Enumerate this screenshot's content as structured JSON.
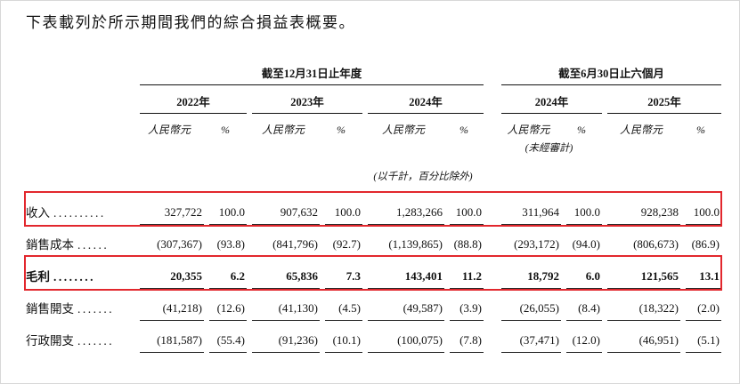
{
  "page": {
    "title": "下表載列於所示期間我們的綜合損益表概要。"
  },
  "table": {
    "groups": [
      {
        "label": "截至12月31日止年度"
      },
      {
        "label": "截至6月30日止六個月"
      }
    ],
    "years": [
      "2022年",
      "2023年",
      "2024年",
      "2024年",
      "2025年"
    ],
    "currency_header": "人民幣元",
    "percent_header": "%",
    "unaudited_note": "(未經審計)",
    "units_note": "(以千計，百分比除外)",
    "highlight_color": "#e2272d",
    "rows": [
      {
        "label": "收入",
        "dots": "..........",
        "highlighted": true,
        "bold": false,
        "values": [
          "327,722",
          "100.0",
          "907,632",
          "100.0",
          "1,283,266",
          "100.0",
          "311,964",
          "100.0",
          "928,238",
          "100.0"
        ]
      },
      {
        "label": "銷售成本",
        "dots": "......",
        "highlighted": false,
        "bold": false,
        "values": [
          "(307,367)",
          "(93.8)",
          "(841,796)",
          "(92.7)",
          "(1,139,865)",
          "(88.8)",
          "(293,172)",
          "(94.0)",
          "(806,673)",
          "(86.9)"
        ]
      },
      {
        "label": "毛利",
        "dots": "........",
        "highlighted": true,
        "bold": true,
        "values": [
          "20,355",
          "6.2",
          "65,836",
          "7.3",
          "143,401",
          "11.2",
          "18,792",
          "6.0",
          "121,565",
          "13.1"
        ]
      },
      {
        "label": "銷售開支",
        "dots": ".......",
        "highlighted": false,
        "bold": false,
        "values": [
          "(41,218)",
          "(12.6)",
          "(41,130)",
          "(4.5)",
          "(49,587)",
          "(3.9)",
          "(26,055)",
          "(8.4)",
          "(18,322)",
          "(2.0)"
        ]
      },
      {
        "label": "行政開支",
        "dots": ".......",
        "highlighted": false,
        "bold": false,
        "values": [
          "(181,587)",
          "(55.4)",
          "(91,236)",
          "(10.1)",
          "(100,075)",
          "(7.8)",
          "(37,471)",
          "(12.0)",
          "(46,951)",
          "(5.1)"
        ]
      }
    ]
  },
  "chart_data": {
    "type": "table",
    "title": "綜合損益表概要",
    "column_groups": [
      {
        "label": "截至12月31日止年度",
        "columns": [
          "2022年",
          "2023年",
          "2024年"
        ]
      },
      {
        "label": "截至6月30日止六個月",
        "columns": [
          "2024年 (未經審計)",
          "2025年"
        ]
      }
    ],
    "units": "以千計，百分比除外",
    "columns": [
      "2022年 人民幣元",
      "2022年 %",
      "2023年 人民幣元",
      "2023年 %",
      "2024年 人民幣元",
      "2024年 %",
      "2024年6月 人民幣元",
      "2024年6月 %",
      "2025年6月 人民幣元",
      "2025年6月 %"
    ],
    "rows": [
      {
        "label": "收入",
        "cells": [
          "327,722",
          "100.0",
          "907,632",
          "100.0",
          "1,283,266",
          "100.0",
          "311,964",
          "100.0",
          "928,238",
          "100.0"
        ]
      },
      {
        "label": "銷售成本",
        "cells": [
          "(307,367)",
          "(93.8)",
          "(841,796)",
          "(92.7)",
          "(1,139,865)",
          "(88.8)",
          "(293,172)",
          "(94.0)",
          "(806,673)",
          "(86.9)"
        ]
      },
      {
        "label": "毛利",
        "cells": [
          "20,355",
          "6.2",
          "65,836",
          "7.3",
          "143,401",
          "11.2",
          "18,792",
          "6.0",
          "121,565",
          "13.1"
        ]
      },
      {
        "label": "銷售開支",
        "cells": [
          "(41,218)",
          "(12.6)",
          "(41,130)",
          "(4.5)",
          "(49,587)",
          "(3.9)",
          "(26,055)",
          "(8.4)",
          "(18,322)",
          "(2.0)"
        ]
      },
      {
        "label": "行政開支",
        "cells": [
          "(181,587)",
          "(55.4)",
          "(91,236)",
          "(10.1)",
          "(100,075)",
          "(7.8)",
          "(37,471)",
          "(12.0)",
          "(46,951)",
          "(5.1)"
        ]
      }
    ]
  }
}
